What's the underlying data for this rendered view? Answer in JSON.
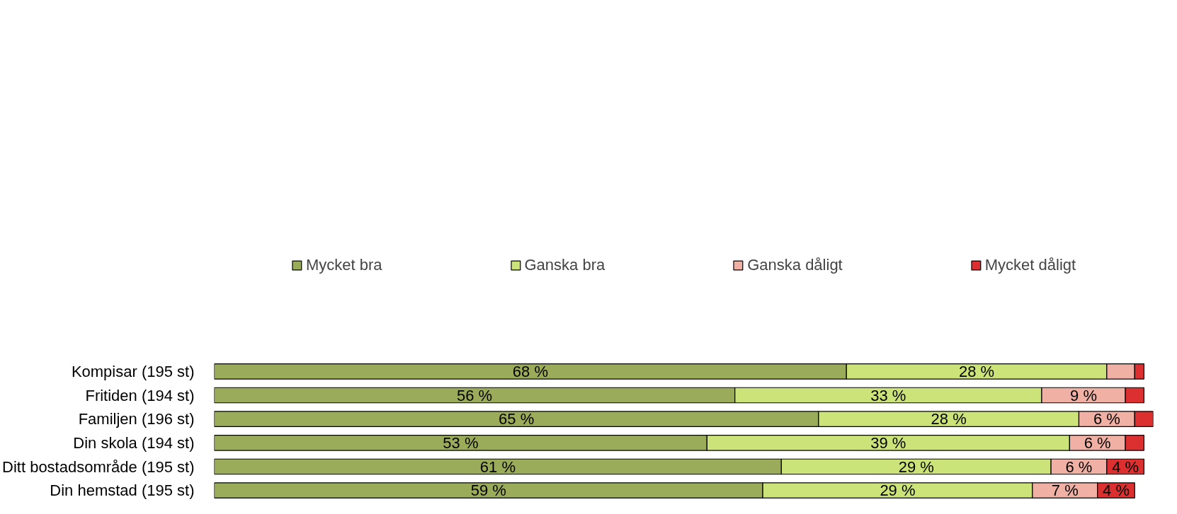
{
  "chart_data": {
    "type": "bar",
    "orientation": "horizontal",
    "stacked": true,
    "legend": "top",
    "grid": false,
    "categories": [
      "Kompisar (195 st)",
      "Fritiden (194 st)",
      "Familjen (196 st)",
      "Din skola (194 st)",
      "Ditt bostadsområde (195 st)",
      "Din hemstad (195 st)"
    ],
    "series": [
      {
        "name": "Mycket bra",
        "color": "#9aab5a",
        "values": [
          68,
          56,
          65,
          53,
          61,
          59
        ],
        "value_labels": [
          "68 %",
          "56 %",
          "65 %",
          "53 %",
          "61 %",
          "59 %"
        ]
      },
      {
        "name": "Ganska bra",
        "color": "#cce37a",
        "values": [
          28,
          33,
          28,
          39,
          29,
          29
        ],
        "value_labels": [
          "28 %",
          "33 %",
          "28 %",
          "39 %",
          "29 %",
          "29 %"
        ]
      },
      {
        "name": "Ganska dåligt",
        "color": "#f0b0a4",
        "values": [
          3,
          9,
          6,
          6,
          6,
          7
        ],
        "value_labels": [
          null,
          "9 %",
          "6 %",
          "6 %",
          "6 %",
          "7 %"
        ]
      },
      {
        "name": "Mycket dåligt",
        "color": "#dc3030",
        "values": [
          1,
          2,
          2,
          2,
          4,
          4
        ],
        "value_labels": [
          null,
          null,
          null,
          null,
          "4 %",
          "4 %"
        ]
      }
    ]
  }
}
